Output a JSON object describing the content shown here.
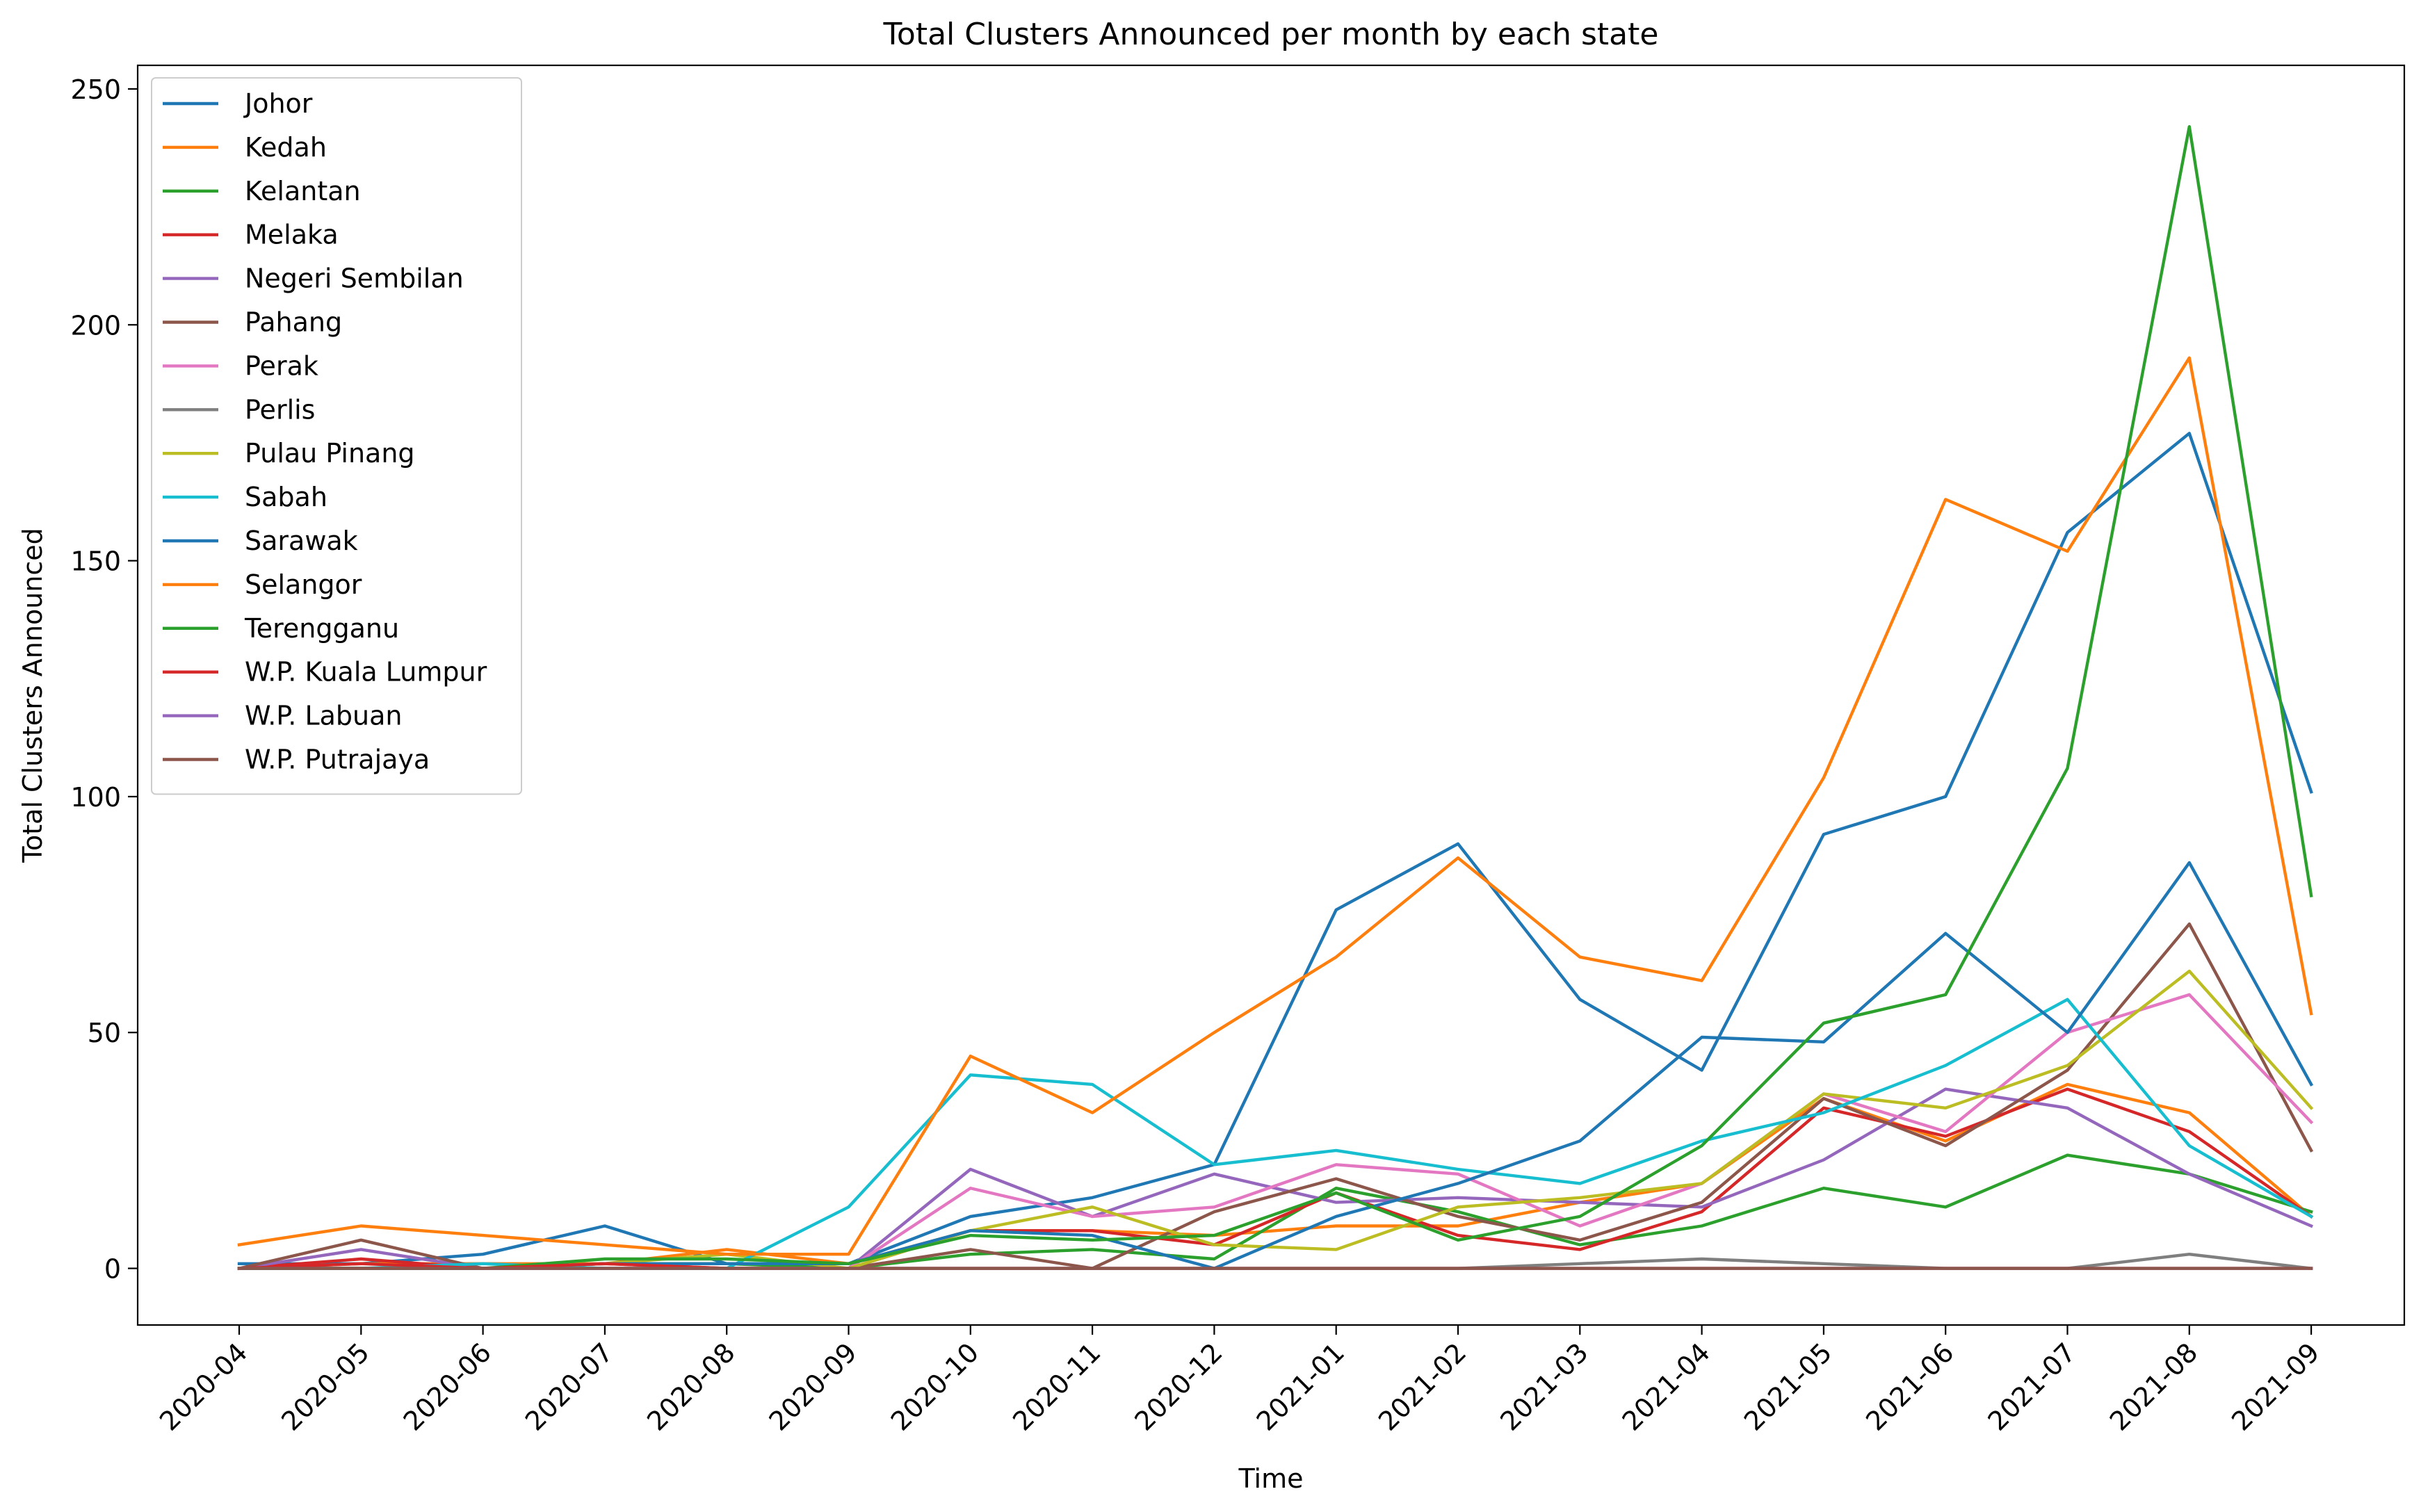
{
  "chart_data": {
    "type": "line",
    "title": "Total Clusters Announced per month by each state",
    "xlabel": "Time",
    "ylabel": "Total Clusters Announced",
    "ylim": [
      -12,
      255
    ],
    "yticks": [
      0,
      50,
      100,
      150,
      200,
      250
    ],
    "grid": false,
    "legend_position": "top-left",
    "x": [
      "2020-04",
      "2020-05",
      "2020-06",
      "2020-07",
      "2020-08",
      "2020-09",
      "2020-10",
      "2020-11",
      "2020-12",
      "2021-01",
      "2021-02",
      "2021-03",
      "2021-04",
      "2021-05",
      "2021-06",
      "2021-07",
      "2021-08",
      "2021-09"
    ],
    "series": [
      {
        "name": "Johor",
        "color": "#1f77b4",
        "values": [
          1,
          1,
          3,
          9,
          1,
          1,
          11,
          15,
          22,
          76,
          90,
          57,
          42,
          92,
          100,
          156,
          177,
          101
        ]
      },
      {
        "name": "Kedah",
        "color": "#ff7f0e",
        "values": [
          0,
          1,
          1,
          1,
          4,
          1,
          8,
          8,
          7,
          9,
          9,
          14,
          18,
          36,
          27,
          39,
          33,
          11
        ]
      },
      {
        "name": "Kelantan",
        "color": "#2ca02c",
        "values": [
          0,
          0,
          0,
          1,
          1,
          0,
          3,
          4,
          2,
          17,
          12,
          5,
          9,
          17,
          13,
          24,
          20,
          12
        ]
      },
      {
        "name": "Melaka",
        "color": "#d62728",
        "values": [
          0,
          2,
          0,
          1,
          0,
          0,
          8,
          8,
          5,
          16,
          7,
          4,
          12,
          34,
          28,
          38,
          29,
          11
        ]
      },
      {
        "name": "Negeri Sembilan",
        "color": "#9467bd",
        "values": [
          0,
          4,
          0,
          0,
          0,
          0,
          21,
          11,
          20,
          14,
          15,
          14,
          13,
          23,
          38,
          34,
          20,
          9
        ]
      },
      {
        "name": "Pahang",
        "color": "#8c564b",
        "values": [
          0,
          6,
          0,
          0,
          0,
          0,
          4,
          0,
          12,
          19,
          11,
          6,
          14,
          36,
          26,
          42,
          73,
          25
        ]
      },
      {
        "name": "Perak",
        "color": "#e377c2",
        "values": [
          0,
          0,
          0,
          0,
          0,
          0,
          17,
          11,
          13,
          22,
          20,
          9,
          18,
          37,
          29,
          50,
          58,
          31
        ]
      },
      {
        "name": "Perlis",
        "color": "#7f7f7f",
        "values": [
          0,
          0,
          0,
          0,
          0,
          0,
          0,
          0,
          0,
          0,
          0,
          1,
          2,
          1,
          0,
          0,
          3,
          0
        ]
      },
      {
        "name": "Pulau Pinang",
        "color": "#bcbd22",
        "values": [
          0,
          0,
          0,
          1,
          3,
          0,
          8,
          13,
          5,
          4,
          13,
          15,
          18,
          37,
          34,
          43,
          63,
          34
        ]
      },
      {
        "name": "Sabah",
        "color": "#17becf",
        "values": [
          0,
          0,
          1,
          0,
          0,
          13,
          41,
          39,
          22,
          25,
          21,
          18,
          27,
          33,
          43,
          57,
          26,
          11
        ]
      },
      {
        "name": "Sarawak",
        "color": "#1f77b4",
        "values": [
          0,
          0,
          0,
          1,
          1,
          1,
          8,
          7,
          0,
          11,
          18,
          27,
          49,
          48,
          71,
          50,
          86,
          39
        ]
      },
      {
        "name": "Selangor",
        "color": "#ff7f0e",
        "values": [
          5,
          9,
          7,
          5,
          3,
          3,
          45,
          33,
          50,
          66,
          87,
          66,
          61,
          104,
          163,
          152,
          193,
          54
        ]
      },
      {
        "name": "Terengganu",
        "color": "#2ca02c",
        "values": [
          0,
          0,
          0,
          2,
          2,
          1,
          7,
          6,
          7,
          16,
          6,
          11,
          26,
          52,
          58,
          106,
          242,
          79
        ]
      },
      {
        "name": "W.P. Kuala Lumpur",
        "color": "#d62728",
        "values": [
          0,
          1,
          0,
          1,
          0,
          0,
          0,
          0,
          0,
          0,
          0,
          0,
          0,
          0,
          0,
          0,
          0,
          0
        ]
      },
      {
        "name": "W.P. Labuan",
        "color": "#9467bd",
        "values": [
          0,
          0,
          0,
          0,
          0,
          0,
          0,
          0,
          0,
          0,
          0,
          0,
          0,
          0,
          0,
          0,
          0,
          0
        ]
      },
      {
        "name": "W.P. Putrajaya",
        "color": "#8c564b",
        "values": [
          0,
          0,
          0,
          0,
          0,
          0,
          0,
          0,
          0,
          0,
          0,
          0,
          0,
          0,
          0,
          0,
          0,
          0
        ]
      }
    ]
  }
}
